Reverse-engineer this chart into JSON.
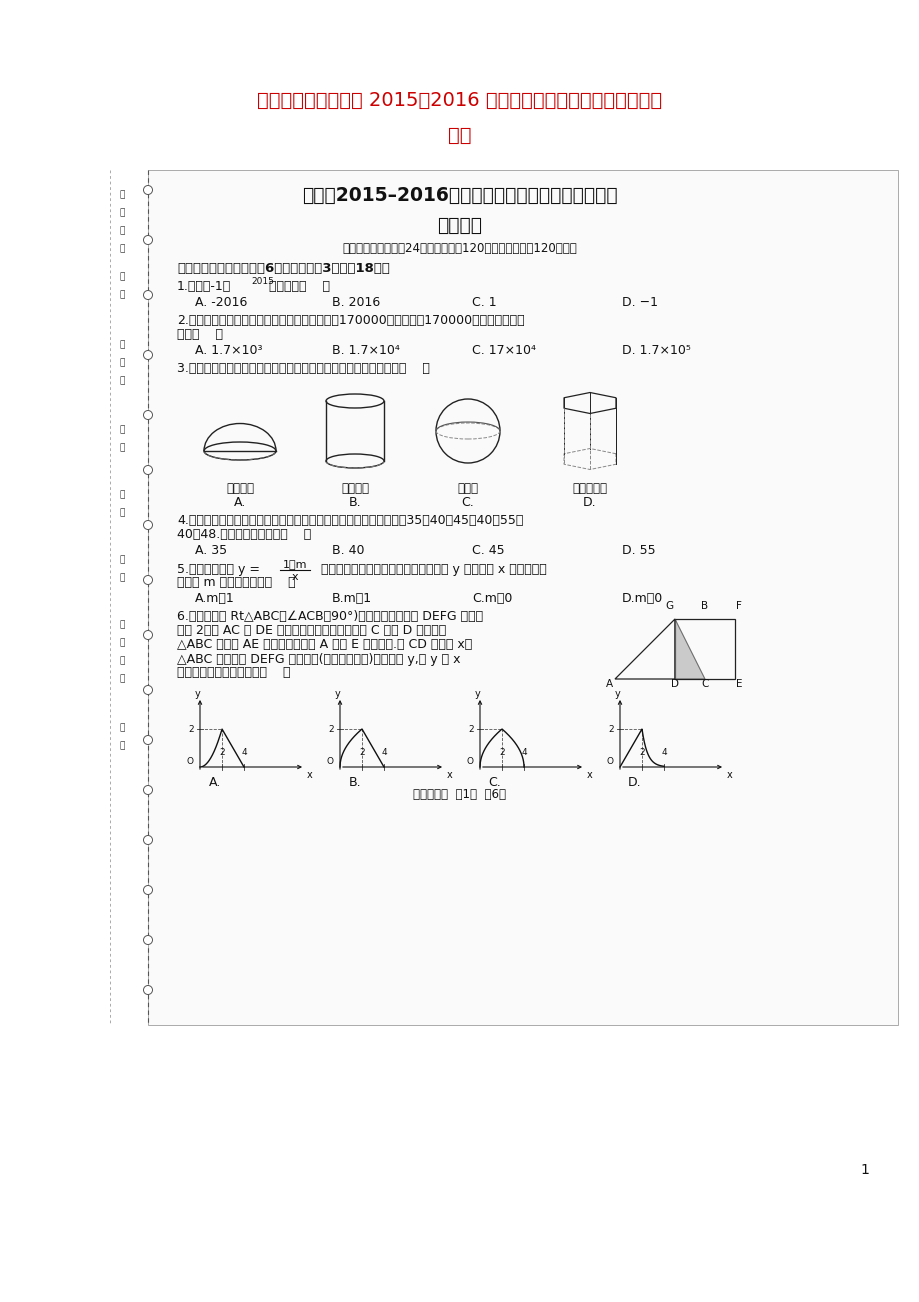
{
  "bg_color": "#ffffff",
  "title_red": "#cc0000",
  "title1": "江西省赣州市石城县 2015－2016 学年九年级数学下学期第一次月考",
  "title2": "试卷",
  "doc_title1": "石城县2015–2016学年度第二学期九年级第一次月考",
  "doc_title2": "数学试卷",
  "doc_subtitle": "（本试卷共六大题，24小题，满分为120分，考试时间为120分钟）",
  "section1": "一、选择题（本大题共有6小题，每小题3分，共18分）",
  "q1_main": "1.计算（-1）",
  "q1_sup": "2015",
  "q1_tail": "的结果是（    ）",
  "q1_a": "A. -2016",
  "q1_b": "B. 2016",
  "q1_c": "C. 1",
  "q1_d": "D. −1",
  "q2_l1": "2.钓鱼岛是我国的固有领土，周围海域面积约为170000平方千米，170000用科学记数法表",
  "q2_l2": "示为（    ）",
  "q2_a": "A. 1.7×10³",
  "q2_b": "B. 1.7×10⁴",
  "q2_c": "C. 17×10⁴",
  "q2_d": "D. 1.7×10⁵",
  "q3": "3.如图所示，下列几何体中，主视图、左视图、俯视图都相同的是（    ）",
  "q3_a": "（半球）",
  "q3_b": "（圆柱）",
  "q3_c": "（球）",
  "q3_d": "（六棱柱）",
  "q4_l1": "4.某同学一周中每天完成家庭作业所花时间（单位：分钟）分别为：35，40，45，40，55，",
  "q4_l2": "40，48.这组数据的众数是（    ）",
  "q4_a": "A. 35",
  "q4_b": "B. 40",
  "q4_c": "C. 45",
  "q4_d": "D. 55",
  "q5_l1_a": "5.若反比例函数 y = ",
  "q5_num": "1－m",
  "q5_den": "x",
  "q5_l1_b": " 的图象在其所在的每一象限内，函数值 y 随自变量 x 的增大而增",
  "q5_l2": "大，则 m 的取值范围是（    ）",
  "q5_a": "A.m＞1",
  "q5_b": "B.m＜1",
  "q5_c": "C.m＞0",
  "q5_d": "D.m＜0",
  "q6_l1": "6.如图，等腰 Rt△ABC（∠ACB＝90°)的直角边与正方形 DEFG 的边长",
  "q6_l2": "均为 2，且 AC 与 DE 在同一条直线上，开始时点 C 与点 D 重合，让",
  "q6_l3": "△ABC 沿直线 AE 向右平移，到点 A 与点 E 重合为止.设 CD 的长为 x，",
  "q6_l4": "△ABC 与正方形 DEFG 重合部分(图中阴影部分)的面积为 y,则 y 与 x",
  "q6_l5": "之间的函数的图象大致是（    ）",
  "footer": "九年级数学  第1页  共6页",
  "page_num": "1"
}
